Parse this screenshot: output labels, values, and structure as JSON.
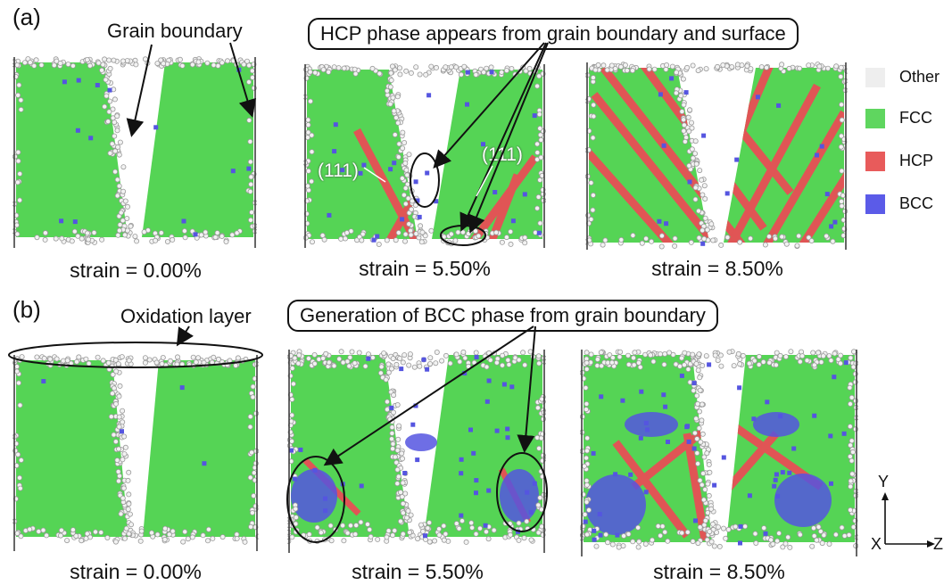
{
  "row_a": {
    "letter": "(a)",
    "grain_boundary_label": "Grain boundary",
    "callout": "HCP phase appears from grain boundary and surface",
    "plane_label_left": "(111)",
    "plane_label_right": "(111)",
    "strains": [
      "strain = 0.00%",
      "strain = 5.50%",
      "strain = 8.50%"
    ]
  },
  "row_b": {
    "letter": "(b)",
    "oxidation_label": "Oxidation layer",
    "callout": "Generation of BCC phase from grain boundary",
    "strains": [
      "strain = 0.00%",
      "strain = 5.50%",
      "strain = 8.50%"
    ]
  },
  "legend": [
    {
      "label": "Other",
      "color": "#eeeeee"
    },
    {
      "label": "FCC",
      "color": "#5fd65f"
    },
    {
      "label": "HCP",
      "color": "#e85b5b"
    },
    {
      "label": "BCC",
      "color": "#5b5be8"
    }
  ],
  "axes": {
    "y": "Y",
    "x": "X",
    "z": "Z"
  },
  "colors": {
    "fcc": "#55d455",
    "hcp": "#e05555",
    "bcc": "#5555e0",
    "other": "#d8d8d8",
    "outline": "#9a9a9a"
  }
}
